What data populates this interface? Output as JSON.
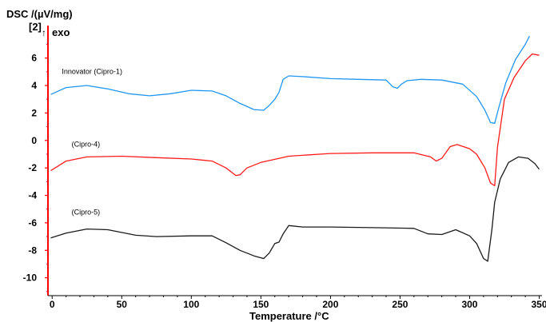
{
  "chart_data": {
    "type": "line",
    "ylabel": "DSC /(µV/mg)",
    "ylabel_marker": "[2]",
    "exo_label": "exo",
    "exo_arrow": "↑",
    "xlabel": "Temperature /°C",
    "xlim": [
      -3,
      352
    ],
    "ylim": [
      -11.3,
      7.9
    ],
    "xticks": [
      0,
      50,
      100,
      150,
      200,
      250,
      300,
      350
    ],
    "yticks": [
      6,
      4,
      2,
      0,
      -2,
      -4,
      -6,
      -8,
      -10
    ],
    "grid": false,
    "axis_color": "#ff0000",
    "series": [
      {
        "name": "Innovator (Cipro-1)",
        "color": "#2196f3",
        "label_at": [
          7,
          4.85
        ],
        "x": [
          -1,
          10,
          25,
          40,
          55,
          70,
          85,
          100,
          115,
          125,
          135,
          145,
          152,
          156,
          160,
          163,
          166,
          170,
          180,
          200,
          220,
          240,
          245,
          248,
          251,
          255,
          265,
          280,
          295,
          305,
          311,
          315,
          318,
          321,
          326,
          333,
          340,
          343
        ],
        "y": [
          3.35,
          3.85,
          4.0,
          3.75,
          3.4,
          3.25,
          3.4,
          3.65,
          3.6,
          3.25,
          2.7,
          2.25,
          2.2,
          2.55,
          3.0,
          3.5,
          4.45,
          4.7,
          4.65,
          4.5,
          4.45,
          4.4,
          3.9,
          3.8,
          4.1,
          4.35,
          4.45,
          4.4,
          4.1,
          3.2,
          2.2,
          1.3,
          1.25,
          2.4,
          4.2,
          5.9,
          7.0,
          7.6
        ]
      },
      {
        "name": "(Cipro-4)",
        "color": "#ff1a1a",
        "label_at": [
          14,
          -0.45
        ],
        "x": [
          -1,
          10,
          25,
          50,
          75,
          100,
          115,
          125,
          132,
          135,
          140,
          150,
          170,
          200,
          230,
          260,
          272,
          276,
          280,
          286,
          291,
          300,
          305,
          311,
          315,
          318,
          320,
          325,
          332,
          340,
          345,
          350
        ],
        "y": [
          -2.2,
          -1.5,
          -1.2,
          -1.15,
          -1.25,
          -1.35,
          -1.5,
          -2.0,
          -2.55,
          -2.5,
          -2.0,
          -1.6,
          -1.15,
          -0.95,
          -0.9,
          -0.9,
          -1.2,
          -1.5,
          -1.3,
          -0.45,
          -0.3,
          -0.6,
          -1.0,
          -2.0,
          -3.1,
          -3.3,
          -0.5,
          3.0,
          4.6,
          5.8,
          6.3,
          6.2
        ]
      },
      {
        "name": "(Cipro-5)",
        "color": "#1a1a1a",
        "label_at": [
          14,
          -5.4
        ],
        "x": [
          -1,
          10,
          25,
          40,
          60,
          75,
          100,
          115,
          125,
          135,
          145,
          152,
          156,
          160,
          163,
          166,
          170,
          180,
          200,
          230,
          260,
          270,
          280,
          290,
          300,
          305,
          310,
          313,
          316,
          318,
          322,
          328,
          335,
          342,
          347,
          350
        ],
        "y": [
          -7.1,
          -6.75,
          -6.45,
          -6.5,
          -6.9,
          -7.0,
          -6.95,
          -6.95,
          -7.45,
          -8.0,
          -8.4,
          -8.6,
          -8.2,
          -7.5,
          -7.4,
          -6.8,
          -6.2,
          -6.3,
          -6.3,
          -6.35,
          -6.4,
          -6.8,
          -6.85,
          -6.5,
          -6.95,
          -7.5,
          -8.6,
          -8.8,
          -6.5,
          -4.5,
          -2.8,
          -1.6,
          -1.2,
          -1.3,
          -1.7,
          -2.1
        ]
      }
    ]
  }
}
